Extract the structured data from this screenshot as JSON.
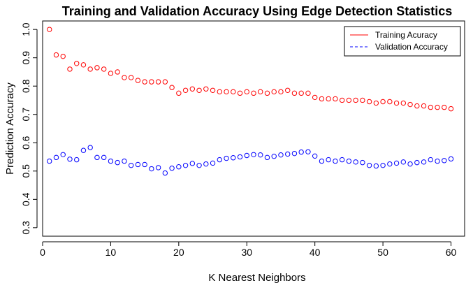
{
  "chart_data": {
    "type": "scatter",
    "title": "Training and Validation Accuracy Using Edge Detection Statistics",
    "xlabel": "K Nearest Neighbors",
    "ylabel": "Prediction Accuracy",
    "xlim": [
      0,
      62
    ],
    "ylim": [
      0.27,
      1.03
    ],
    "x_ticks": [
      0,
      10,
      20,
      30,
      40,
      50,
      60
    ],
    "x_tick_labels": [
      "0",
      "10",
      "20",
      "30",
      "40",
      "50",
      "60"
    ],
    "y_ticks": [
      0.3,
      0.4,
      0.5,
      0.6,
      0.7,
      0.8,
      0.9,
      1.0
    ],
    "y_tick_labels": [
      "0.3",
      "0.4",
      "0.5",
      "0.6",
      "0.7",
      "0.8",
      "0.9",
      "1.0"
    ],
    "grid": false,
    "legend_position": "top-right",
    "x": [
      1,
      2,
      3,
      4,
      5,
      6,
      7,
      8,
      9,
      10,
      11,
      12,
      13,
      14,
      15,
      16,
      17,
      18,
      19,
      20,
      21,
      22,
      23,
      24,
      25,
      26,
      27,
      28,
      29,
      30,
      31,
      32,
      33,
      34,
      35,
      36,
      37,
      38,
      39,
      40,
      41,
      42,
      43,
      44,
      45,
      46,
      47,
      48,
      49,
      50,
      51,
      52,
      53,
      54,
      55,
      56,
      57,
      58,
      59,
      60
    ],
    "series": [
      {
        "name": "Training Acuracy",
        "color": "#ff0000",
        "marker": "open-circle",
        "legend_line": "solid",
        "values": [
          1.0,
          0.91,
          0.905,
          0.86,
          0.88,
          0.875,
          0.86,
          0.865,
          0.86,
          0.845,
          0.85,
          0.83,
          0.83,
          0.82,
          0.815,
          0.815,
          0.815,
          0.815,
          0.795,
          0.775,
          0.785,
          0.79,
          0.785,
          0.79,
          0.785,
          0.78,
          0.78,
          0.78,
          0.775,
          0.78,
          0.775,
          0.78,
          0.775,
          0.78,
          0.78,
          0.785,
          0.775,
          0.775,
          0.775,
          0.76,
          0.755,
          0.755,
          0.755,
          0.75,
          0.75,
          0.75,
          0.75,
          0.745,
          0.74,
          0.745,
          0.745,
          0.74,
          0.74,
          0.735,
          0.73,
          0.73,
          0.725,
          0.725,
          0.725,
          0.72
        ]
      },
      {
        "name": "Validation Accuracy",
        "color": "#0000ff",
        "marker": "open-circle",
        "legend_line": "dashed",
        "values": [
          0.535,
          0.548,
          0.558,
          0.542,
          0.54,
          0.573,
          0.583,
          0.548,
          0.548,
          0.535,
          0.53,
          0.535,
          0.52,
          0.523,
          0.523,
          0.508,
          0.512,
          0.493,
          0.51,
          0.515,
          0.52,
          0.527,
          0.52,
          0.525,
          0.528,
          0.54,
          0.545,
          0.547,
          0.55,
          0.555,
          0.558,
          0.557,
          0.548,
          0.552,
          0.557,
          0.56,
          0.562,
          0.567,
          0.568,
          0.553,
          0.535,
          0.54,
          0.535,
          0.54,
          0.535,
          0.532,
          0.53,
          0.52,
          0.518,
          0.52,
          0.525,
          0.528,
          0.532,
          0.525,
          0.53,
          0.532,
          0.54,
          0.535,
          0.537,
          0.543
        ]
      }
    ]
  }
}
